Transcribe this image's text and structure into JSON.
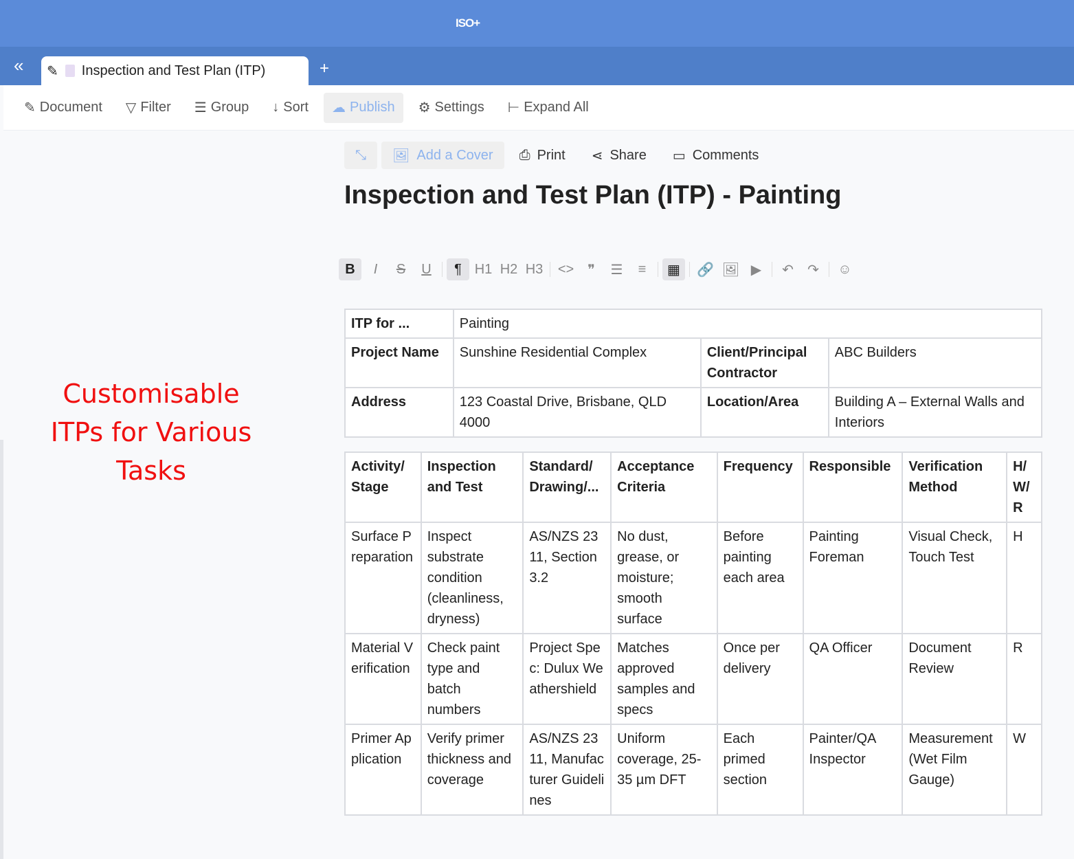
{
  "app": {
    "logo": "ISO+",
    "tab_title": "Inspection and Test Plan (ITP)",
    "add_tab": "+",
    "collapse": "«"
  },
  "toolbar": {
    "document": "Document",
    "filter": "Filter",
    "group": "Group",
    "sort": "Sort",
    "publish": "Publish",
    "settings": "Settings",
    "expand_all": "Expand All"
  },
  "actions": {
    "add_cover": "Add a Cover",
    "print": "Print",
    "share": "Share",
    "comments": "Comments"
  },
  "page_title": "Inspection and Test Plan (ITP) - Painting",
  "promo": [
    "Customisable",
    "ITPs for Various",
    "Tasks"
  ],
  "editor": [
    "B",
    "I",
    "S",
    "U",
    "¶",
    "H1",
    "H2",
    "H3",
    "<>",
    "❞",
    "☰",
    "≡",
    "▦",
    "🔗",
    "🖼",
    "▶",
    "↶",
    "↷",
    "☺"
  ],
  "info_table": {
    "itp_for_label": "ITP for ...",
    "itp_for": "Painting",
    "project_label": "Project Name",
    "project": "Sunshine Residential Complex",
    "client_label": "Client/Principal Contractor",
    "client": "ABC Builders",
    "address_label": "Address",
    "address": "123 Coastal Drive, Brisbane, QLD 4000",
    "location_label": "Location/Area",
    "location": "Building A – External Walls and Interiors"
  },
  "itp_table": {
    "headers": [
      "Activity/ Stage",
      "Inspection and Test",
      "Standard/ Drawing/...",
      "Acceptance Criteria",
      "Frequency",
      "Responsible",
      "Verification Method",
      "H/ W/ R"
    ],
    "rows": [
      [
        "Surface Preparation",
        "Inspect substrate condition (cleanliness, dryness)",
        "AS/NZS 2311, Section 3.2",
        "No dust, grease, or moisture; smooth surface",
        "Before painting each area",
        "Painting Foreman",
        "Visual Check, Touch Test",
        "H"
      ],
      [
        "Material Verification",
        "Check paint type and batch numbers",
        "Project Spec: Dulux Weathershield",
        "Matches approved samples and specs",
        "Once per delivery",
        "QA Officer",
        "Document Review",
        "R"
      ],
      [
        "Primer Application",
        "Verify primer thickness and coverage",
        "AS/NZS 2311, Manufacturer Guidelines",
        "Uniform coverage, 25-35 µm DFT",
        "Each primed section",
        "Painter/QA Inspector",
        "Measurement (Wet Film Gauge)",
        "W"
      ]
    ]
  }
}
